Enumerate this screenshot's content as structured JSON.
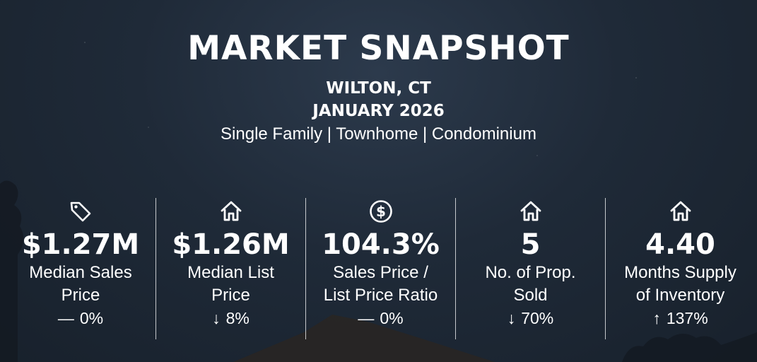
{
  "header": {
    "title": "MARKET SNAPSHOT",
    "location": "WILTON, CT",
    "period": "JANUARY 2026",
    "property_types": "Single Family | Townhome | Condominium"
  },
  "stats": [
    {
      "icon": "price-tag-icon",
      "value": "$1.27M",
      "label_line1": "Median Sales",
      "label_line2": "Price",
      "change_arrow": "—",
      "change_value": "0%"
    },
    {
      "icon": "house-icon",
      "value": "$1.26M",
      "label_line1": "Median List",
      "label_line2": "Price",
      "change_arrow": "↓",
      "change_value": "8%"
    },
    {
      "icon": "dollar-circle-icon",
      "value": "104.3%",
      "label_line1": "Sales Price /",
      "label_line2": "List Price Ratio",
      "change_arrow": "—",
      "change_value": "0%"
    },
    {
      "icon": "house-icon",
      "value": "5",
      "label_line1": "No. of Prop.",
      "label_line2": "Sold",
      "change_arrow": "↓",
      "change_value": "70%"
    },
    {
      "icon": "house-icon",
      "value": "4.40",
      "label_line1": "Months Supply",
      "label_line2": "of Inventory",
      "change_arrow": "↑",
      "change_value": "137%"
    }
  ],
  "colors": {
    "text": "#ffffff",
    "background_dark": "#1f2a38",
    "divider": "#ffffff"
  }
}
